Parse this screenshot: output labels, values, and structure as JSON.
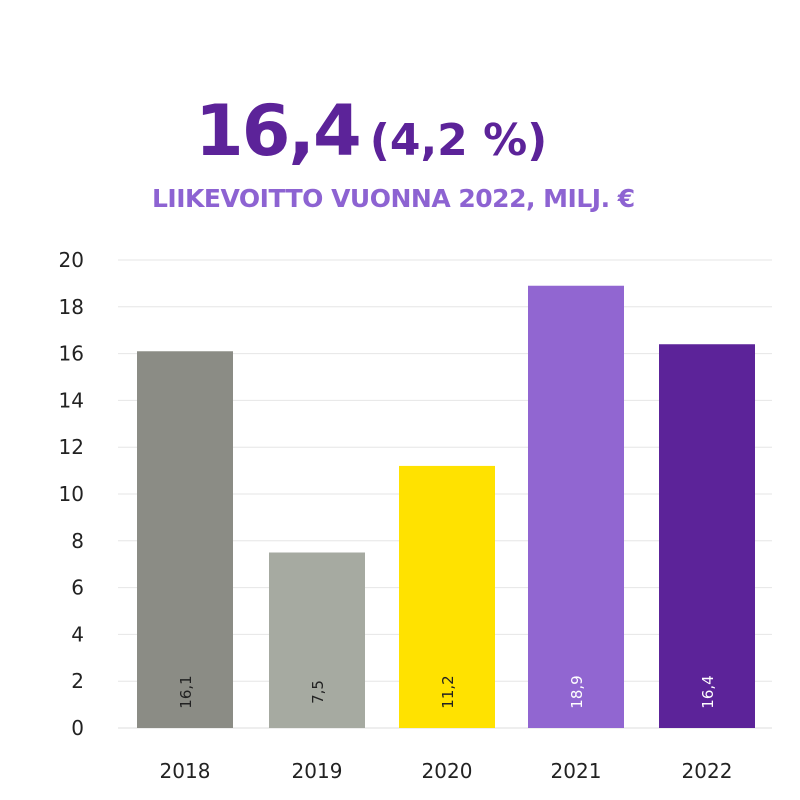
{
  "header": {
    "value": "16,4",
    "percent": "(4,2 %)",
    "subtitle": "LIIKEVOITTO VUONNA 2022, MILJ. €"
  },
  "colors": {
    "headline": "#5c2399",
    "subtitle": "#8d63d2",
    "grid": "#e6e6e6"
  },
  "chart_data": {
    "type": "bar",
    "title": "LIIKEVOITTO VUONNA 2022, MILJ. €",
    "xlabel": "",
    "ylabel": "",
    "ylim": [
      0,
      20
    ],
    "yticks": [
      0,
      2,
      4,
      6,
      8,
      10,
      12,
      14,
      16,
      18,
      20
    ],
    "grid": true,
    "categories": [
      "2018",
      "2019",
      "2020",
      "2021",
      "2022"
    ],
    "values": [
      16.1,
      7.5,
      11.2,
      18.9,
      16.4
    ],
    "value_labels": [
      "16,1",
      "7,5",
      "11,2",
      "18,9",
      "16,4"
    ],
    "bar_colors": [
      "#8b8c85",
      "#a6aaa1",
      "#ffe200",
      "#9166d1",
      "#5c2399"
    ],
    "label_colors": [
      "#222222",
      "#222222",
      "#222222",
      "#ffffff",
      "#ffffff"
    ]
  }
}
